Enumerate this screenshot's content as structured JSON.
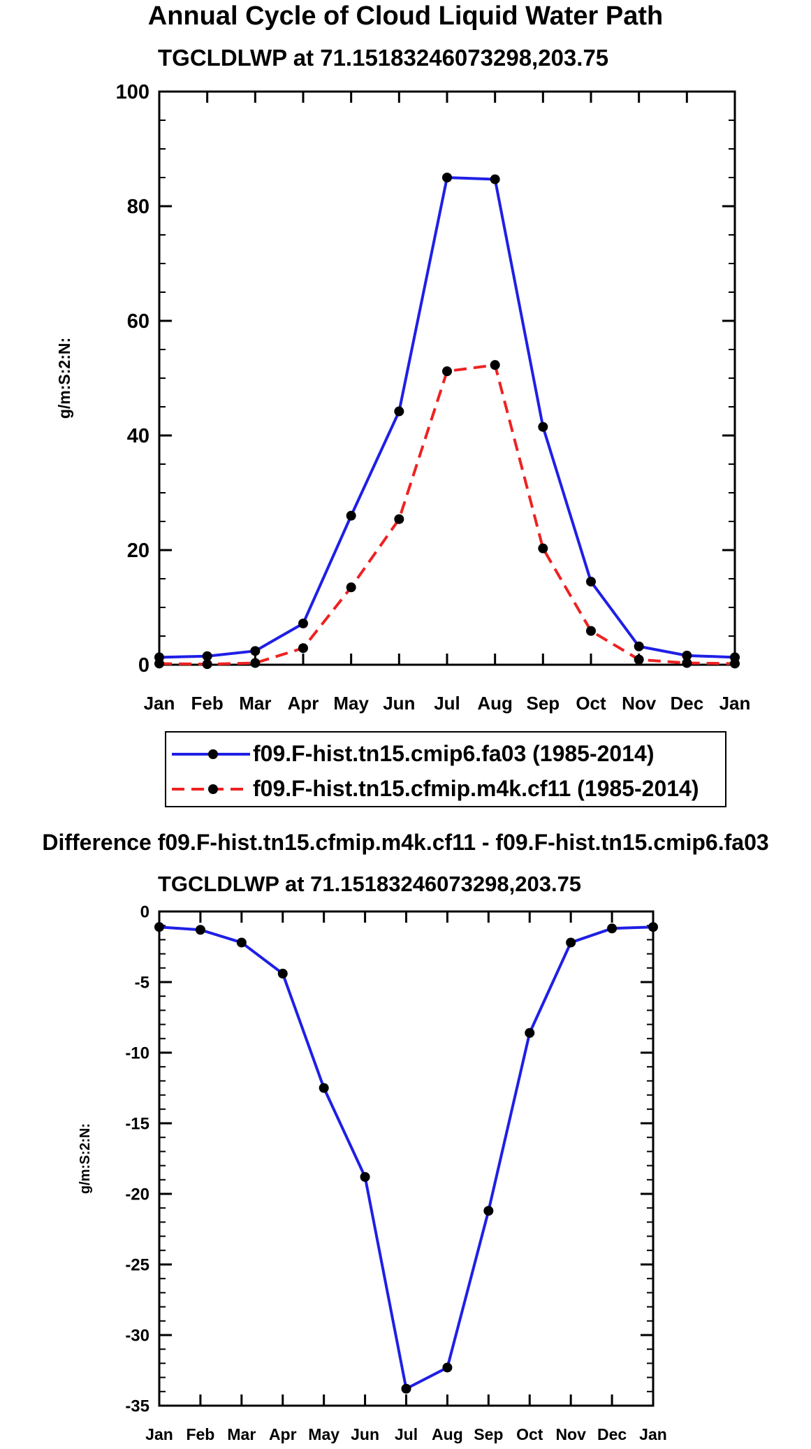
{
  "page": {
    "main_title": "Annual Cycle of Cloud Liquid Water Path",
    "top_subtitle": "TGCLDLWP at 71.15183246073298,203.75",
    "diff_title": "Difference f09.F-hist.tn15.cfmip.m4k.cf11 - f09.F-hist.tn15.cmip6.fa03",
    "bottom_subtitle": "TGCLDLWP at 71.15183246073298,203.75"
  },
  "colors": {
    "series1": "#1f1fe6",
    "series2": "#ee2222",
    "diff": "#1f1fe6"
  },
  "chart_data": [
    {
      "type": "line",
      "title": "TGCLDLWP at 71.15183246073298,203.75",
      "xlabel": "",
      "ylabel": "g/m:S:2:N:",
      "categories": [
        "Jan",
        "Feb",
        "Mar",
        "Apr",
        "May",
        "Jun",
        "Jul",
        "Aug",
        "Sep",
        "Oct",
        "Nov",
        "Dec",
        "Jan"
      ],
      "ylim": [
        0,
        100
      ],
      "yticks": [
        "0",
        "20",
        "40",
        "60",
        "80",
        "100"
      ],
      "series": [
        {
          "name": "f09.F-hist.tn15.cmip6.fa03 (1985-2014)",
          "style": "solid",
          "values": [
            1.3,
            1.5,
            2.4,
            7.2,
            26.0,
            44.2,
            85.0,
            84.7,
            41.5,
            14.5,
            3.2,
            1.6,
            1.3
          ]
        },
        {
          "name": "f09.F-hist.tn15.cfmip.m4k.cf11 (1985-2014)",
          "style": "dashed",
          "values": [
            0.2,
            0.1,
            0.3,
            2.9,
            13.5,
            25.4,
            51.2,
            52.3,
            20.3,
            5.9,
            0.9,
            0.3,
            0.2
          ]
        }
      ],
      "legend": [
        "f09.F-hist.tn15.cmip6.fa03 (1985-2014)",
        "f09.F-hist.tn15.cfmip.m4k.cf11 (1985-2014)"
      ]
    },
    {
      "type": "line",
      "title": "TGCLDLWP at 71.15183246073298,203.75",
      "xlabel": "",
      "ylabel": "g/m:S:2:N:",
      "categories": [
        "Jan",
        "Feb",
        "Mar",
        "Apr",
        "May",
        "Jun",
        "Jul",
        "Aug",
        "Sep",
        "Oct",
        "Nov",
        "Dec",
        "Jan"
      ],
      "ylim": [
        -35,
        0
      ],
      "yticks": [
        "0",
        "-5",
        "-10",
        "-15",
        "-20",
        "-25",
        "-30",
        "-35"
      ],
      "series": [
        {
          "name": "Difference",
          "style": "solid",
          "values": [
            -1.1,
            -1.3,
            -2.2,
            -4.4,
            -12.5,
            -18.8,
            -33.8,
            -32.3,
            -21.2,
            -8.6,
            -2.2,
            -1.2,
            -1.1
          ]
        }
      ]
    }
  ]
}
